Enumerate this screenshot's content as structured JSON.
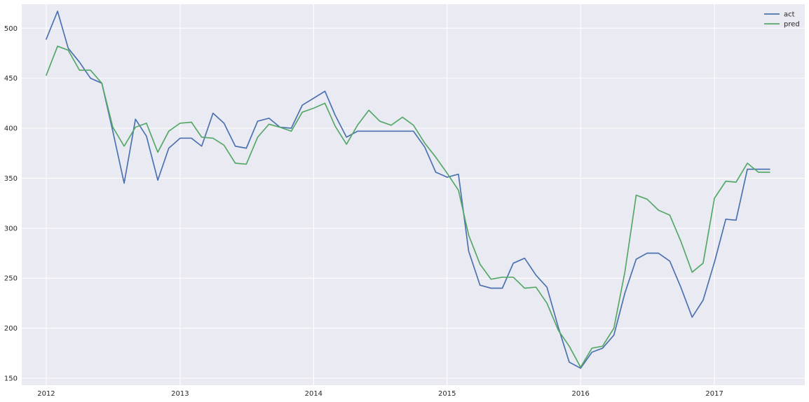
{
  "chart_data": {
    "type": "line",
    "title": "",
    "xlabel": "",
    "ylabel": "",
    "x_ticks": [
      "2012",
      "2013",
      "2014",
      "2015",
      "2016",
      "2017"
    ],
    "y_ticks": [
      "150",
      "200",
      "250",
      "300",
      "350",
      "400",
      "450",
      "500"
    ],
    "ylim": [
      143,
      524
    ],
    "x_range": [
      "2011-10-26",
      "2017-09-05"
    ],
    "grid": true,
    "legend_position": "top-right",
    "colors": {
      "background": "#eaeaf2",
      "grid": "#ffffff",
      "act": "#4c72b0",
      "pred": "#55a868"
    },
    "x": [
      "2012-01",
      "2012-02",
      "2012-03",
      "2012-04",
      "2012-05",
      "2012-06",
      "2012-07",
      "2012-08",
      "2012-09",
      "2012-10",
      "2012-11",
      "2012-12",
      "2013-01",
      "2013-02",
      "2013-03",
      "2013-04",
      "2013-05",
      "2013-06",
      "2013-07",
      "2013-08",
      "2013-09",
      "2013-10",
      "2013-11",
      "2013-12",
      "2014-01",
      "2014-02",
      "2014-03",
      "2014-04",
      "2014-05",
      "2014-06",
      "2014-07",
      "2014-08",
      "2014-09",
      "2014-10",
      "2014-11",
      "2014-12",
      "2015-01",
      "2015-02",
      "2015-03",
      "2015-04",
      "2015-05",
      "2015-06",
      "2015-07",
      "2015-08",
      "2015-09",
      "2015-10",
      "2015-11",
      "2015-12",
      "2016-01",
      "2016-02",
      "2016-03",
      "2016-04",
      "2016-05",
      "2016-06",
      "2016-07",
      "2016-08",
      "2016-09",
      "2016-10",
      "2016-11",
      "2016-12",
      "2017-01",
      "2017-02",
      "2017-03",
      "2017-04",
      "2017-05",
      "2017-06"
    ],
    "series": [
      {
        "name": "act",
        "values": [
          489,
          517,
          480,
          466,
          450,
          445,
          397,
          345,
          409,
          392,
          348,
          380,
          390,
          390,
          382,
          415,
          405,
          382,
          380,
          407,
          410,
          401,
          400,
          423,
          430,
          437,
          413,
          391,
          397,
          397,
          397,
          397,
          397,
          397,
          381,
          356,
          351,
          354,
          277,
          243,
          240,
          240,
          265,
          270,
          253,
          241,
          201,
          166,
          160,
          176,
          180,
          193,
          235,
          269,
          275,
          275,
          267,
          241,
          211,
          228,
          266,
          309,
          308,
          359,
          359,
          359
        ]
      },
      {
        "name": "pred",
        "values": [
          453,
          482,
          478,
          458,
          458,
          445,
          401,
          382,
          401,
          405,
          376,
          397,
          405,
          406,
          391,
          390,
          383,
          365,
          364,
          391,
          404,
          401,
          397,
          416,
          420,
          425,
          402,
          384,
          403,
          418,
          407,
          403,
          411,
          403,
          385,
          371,
          355,
          338,
          293,
          264,
          249,
          251,
          251,
          240,
          241,
          225,
          198,
          182,
          161,
          180,
          182,
          200,
          256,
          333,
          329,
          318,
          313,
          287,
          256,
          265,
          330,
          347,
          346,
          365,
          356,
          356
        ]
      }
    ]
  }
}
